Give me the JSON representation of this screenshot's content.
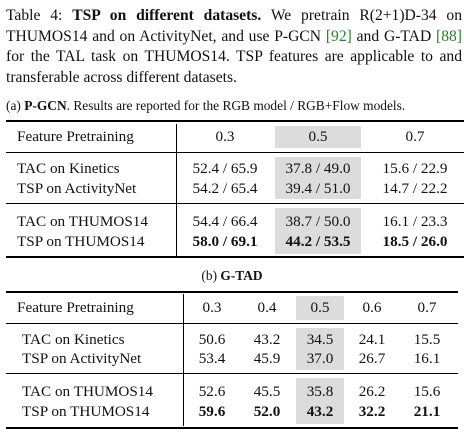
{
  "caption": {
    "label": "Table 4:",
    "title": "TSP on different datasets.",
    "text_before_cite1": "We pretrain R(2+1)D-34 on THUMOS14 and on ActivityNet, and use P-GCN",
    "cite1": "[92]",
    "text_between_cites": "and G-TAD",
    "cite2": "[88]",
    "text_after_cite2": "for the TAL task on THUMOS14. TSP features are applicable to and transferable across different datasets."
  },
  "pgcn": {
    "subcaption_prefix": "(a)",
    "subcaption_name": "P-GCN",
    "subcaption_rest": ". Results are reported for the RGB model / RGB+Flow models.",
    "header": {
      "row_label": "Feature Pretraining",
      "columns": [
        "0.3",
        "0.5",
        "0.7"
      ]
    },
    "rows": [
      {
        "label": "TAC on Kinetics",
        "values": [
          "52.4 / 65.9",
          "37.8 / 49.0",
          "15.6 / 22.9"
        ]
      },
      {
        "label": "TSP on ActivityNet",
        "values": [
          "54.2 / 65.4",
          "39.4 / 51.0",
          "14.7 / 22.2"
        ]
      },
      {
        "label": "TAC on THUMOS14",
        "values": [
          "54.4 / 66.4",
          "38.7 / 50.0",
          "16.1 / 23.3"
        ]
      },
      {
        "label": "TSP on THUMOS14",
        "values": [
          "58.0 / 69.1",
          "44.2 / 53.5",
          "18.5 / 26.0"
        ],
        "bold": true
      }
    ]
  },
  "gtad": {
    "subcaption_prefix": "(b)",
    "subcaption_name": "G-TAD",
    "header": {
      "row_label": "Feature Pretraining",
      "columns": [
        "0.3",
        "0.4",
        "0.5",
        "0.6",
        "0.7"
      ]
    },
    "rows": [
      {
        "label": "TAC on Kinetics",
        "values": [
          "50.6",
          "43.2",
          "34.5",
          "24.1",
          "15.5"
        ]
      },
      {
        "label": "TSP on ActivityNet",
        "values": [
          "53.4",
          "45.9",
          "37.0",
          "26.7",
          "16.1"
        ]
      },
      {
        "label": "TAC on THUMOS14",
        "values": [
          "52.6",
          "45.5",
          "35.8",
          "26.2",
          "15.6"
        ]
      },
      {
        "label": "TSP on THUMOS14",
        "values": [
          "59.6",
          "52.0",
          "43.2",
          "32.2",
          "21.1"
        ],
        "bold": true
      }
    ]
  },
  "colors": {
    "highlight": "#dcdcdc",
    "citation": "#2e7d32"
  }
}
